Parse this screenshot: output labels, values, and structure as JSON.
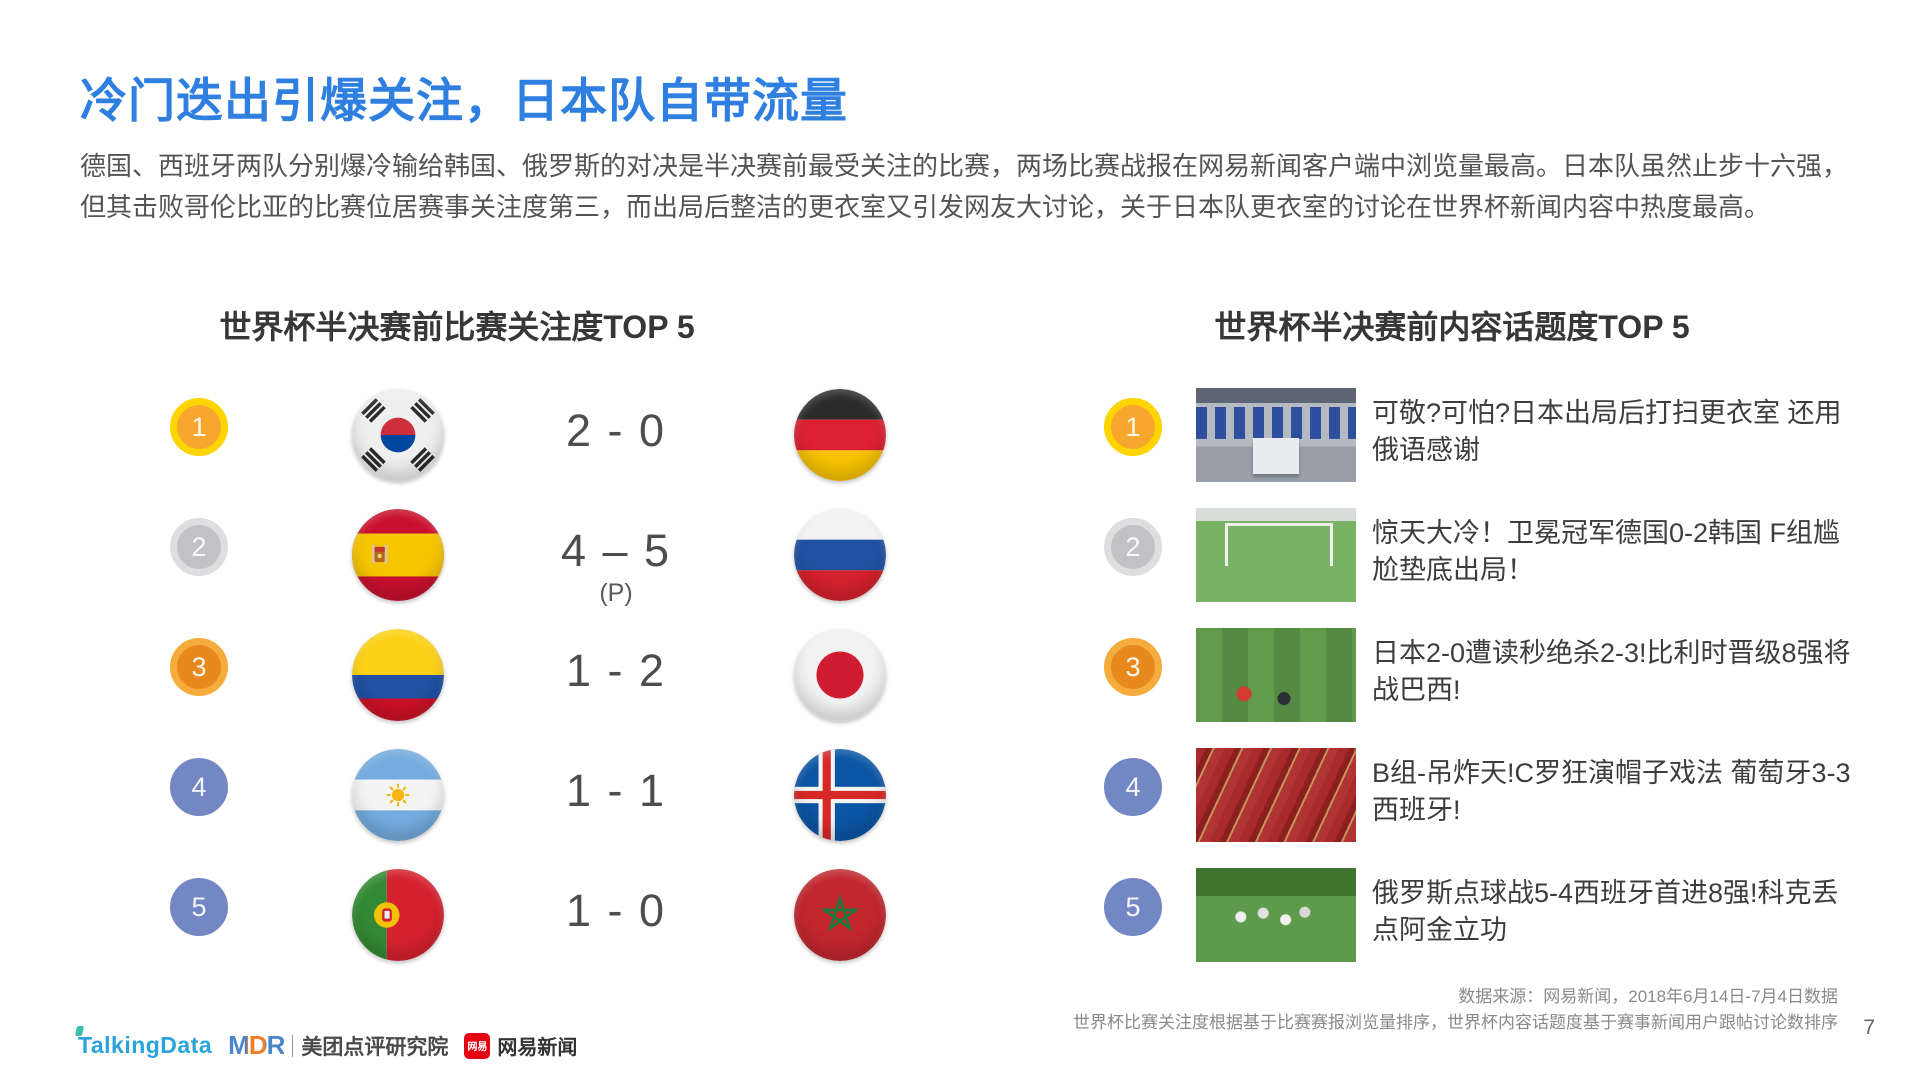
{
  "page": {
    "title": "冷门迭出引爆关注，日本队自带流量",
    "paragraph": "德国、西班牙两队分别爆冷输给韩国、俄罗斯的对决是半决赛前最受关注的比赛，两场比赛战报在网易新闻客户端中浏览量最高。日本队虽然止步十六强，但其击败哥伦比亚的比赛位居赛事关注度第三，而出局后整洁的更衣室又引发网友大讨论，关于日本队更衣室的讨论在世界杯新闻内容中热度最高。",
    "page_number": "7"
  },
  "left_section": {
    "title": "世界杯半决赛前比赛关注度TOP 5",
    "rows": [
      {
        "rank": "1",
        "rank_style": "gold",
        "team_a": "south-korea",
        "score": "2 - 0",
        "penalty": "",
        "team_b": "germany"
      },
      {
        "rank": "2",
        "rank_style": "silver",
        "team_a": "spain",
        "score": "4 – 5",
        "penalty": "(P)",
        "team_b": "russia"
      },
      {
        "rank": "3",
        "rank_style": "bronze",
        "team_a": "colombia",
        "score": "1 - 2",
        "penalty": "",
        "team_b": "japan"
      },
      {
        "rank": "4",
        "rank_style": "plain",
        "team_a": "argentina",
        "score": "1 - 1",
        "penalty": "",
        "team_b": "iceland"
      },
      {
        "rank": "5",
        "rank_style": "plain",
        "team_a": "portugal",
        "score": "1 - 0",
        "penalty": "",
        "team_b": "morocco"
      }
    ]
  },
  "right_section": {
    "title": "世界杯半决赛前内容话题度TOP 5",
    "rows": [
      {
        "rank": "1",
        "rank_style": "gold",
        "thumbnail": "locker-room-photo",
        "headline": "可敬?可怕?日本出局后打扫更衣室 还用俄语感谢"
      },
      {
        "rank": "2",
        "rank_style": "silver",
        "thumbnail": "germany-korea-match-photo",
        "headline": "惊天大冷！卫冕冠军德国0-2韩国 F组尴尬垫底出局！"
      },
      {
        "rank": "3",
        "rank_style": "bronze",
        "thumbnail": "japan-belgium-match-photo",
        "headline": "日本2-0遭读秒绝杀2-3!比利时晋级8强将战巴西!"
      },
      {
        "rank": "4",
        "rank_style": "plain",
        "thumbnail": "portugal-spain-fans-photo",
        "headline": "B组-吊炸天!C罗狂演帽子戏法 葡萄牙3-3西班牙!"
      },
      {
        "rank": "5",
        "rank_style": "plain",
        "thumbnail": "russia-spain-match-photo",
        "headline": "俄罗斯点球战5-4西班牙首进8强!科克丢点阿金立功"
      }
    ]
  },
  "footer": {
    "source_line1": "数据来源：网易新闻，2018年6月14日-7月4日数据",
    "source_line2": "世界杯比赛关注度根据基于比赛赛报浏览量排序，世界杯内容话题度基于赛事新闻用户跟帖讨论数排序",
    "logos": {
      "talkingdata": "TalkingData",
      "mdr": "MDR",
      "meituan": "美团点评研究院",
      "netease_badge": "网易",
      "netease": "网易新闻"
    }
  },
  "colors": {
    "title_blue": "#2E7FE0",
    "medal_gold_ring": "#FFD400",
    "medal_gold_fill": "#F7A72E",
    "medal_silver_ring": "#DEDEE0",
    "medal_silver_fill": "#C2C2C6",
    "medal_bronze_ring": "#F6AC3C",
    "medal_bronze_fill": "#E8891E",
    "ribbon_red": "#F84B16",
    "rank_plain_blue": "#7487C5",
    "netease_red": "#E60012",
    "talkingdata_blue": "#2AA3DC"
  }
}
